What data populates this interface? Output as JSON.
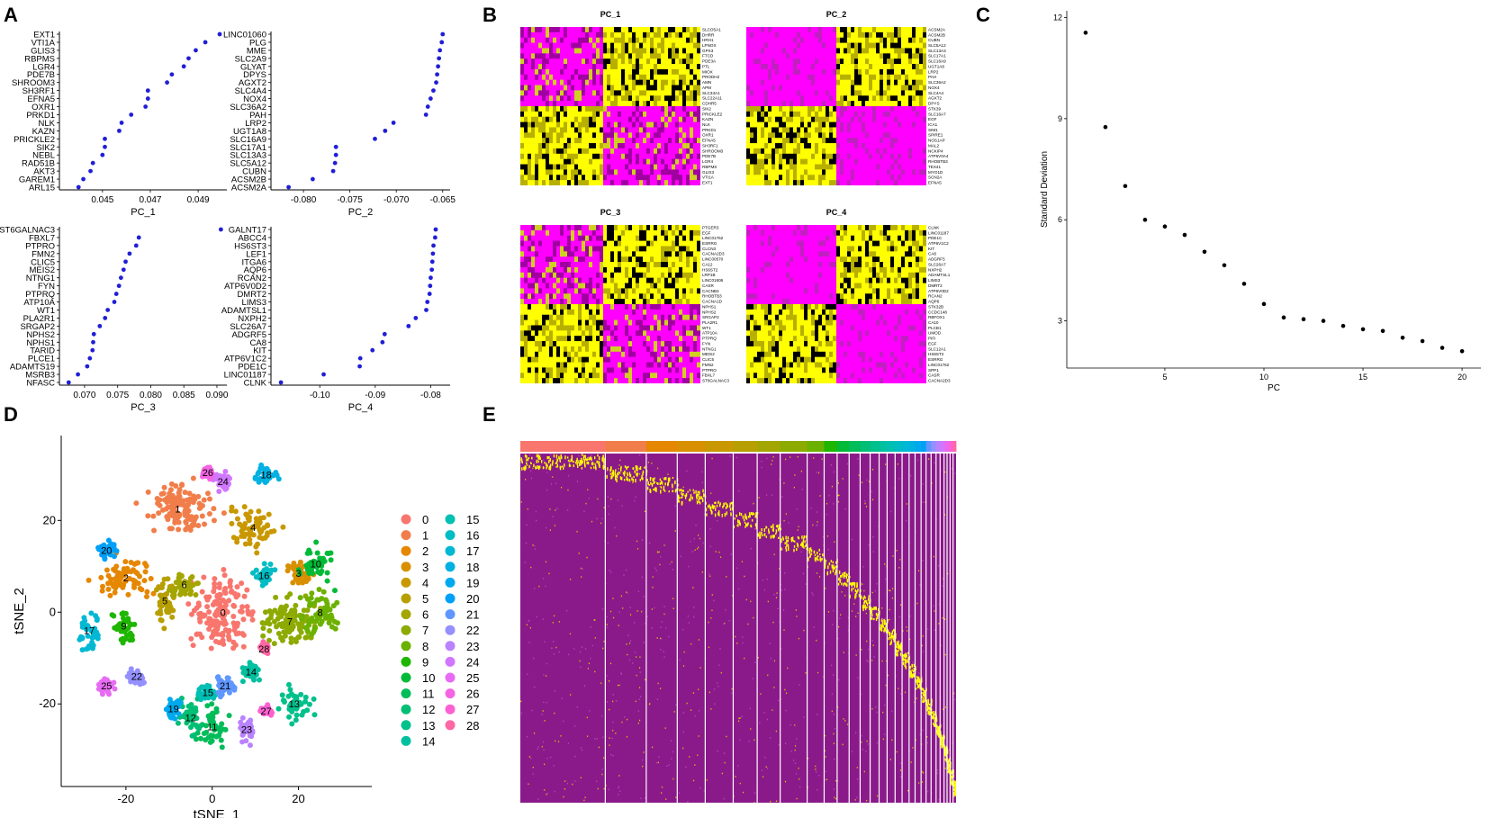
{
  "figure": {
    "panel_letters": [
      "A",
      "B",
      "C",
      "D",
      "E"
    ]
  },
  "chart_data": [
    {
      "id": "A1",
      "type": "scatter",
      "panel": "A",
      "xlabel": "PC_1",
      "xticks": [
        "0.045",
        "0.047",
        "0.049"
      ],
      "xtick_values": [
        0.045,
        0.047,
        0.049
      ],
      "xlim": [
        0.0432,
        0.0502
      ],
      "genes": [
        "EXT1",
        "VTI1A",
        "GLIS3",
        "RBPMS",
        "LGR4",
        "PDE7B",
        "SHROOM3",
        "SH3RF1",
        "EFNA5",
        "OXR1",
        "PRKD1",
        "NLK",
        "KAZN",
        "PRICKLE2",
        "SIK2",
        "NEBL",
        "RAD51B",
        "AKT3",
        "GAREM1",
        "ARL15"
      ],
      "values": [
        0.0499,
        0.0493,
        0.0489,
        0.0486,
        0.0484,
        0.0479,
        0.0477,
        0.0469,
        0.0469,
        0.0468,
        0.0462,
        0.0458,
        0.0457,
        0.0451,
        0.0451,
        0.045,
        0.0446,
        0.0445,
        0.0442,
        0.044
      ]
    },
    {
      "id": "A2",
      "type": "scatter",
      "panel": "A",
      "xlabel": "PC_2",
      "xticks": [
        "-0.080",
        "-0.075",
        "-0.070",
        "-0.065"
      ],
      "xtick_values": [
        -0.08,
        -0.075,
        -0.07,
        -0.065
      ],
      "xlim": [
        -0.0835,
        -0.0642
      ],
      "genes": [
        "LINC01060",
        "PLG",
        "MME",
        "SLC2A9",
        "GLYAT",
        "DPYS",
        "AGXT2",
        "SLC4A4",
        "NOX4",
        "SLC36A2",
        "PAH",
        "LRP2",
        "UGT1A8",
        "SLC16A9",
        "SLC17A1",
        "SLC13A3",
        "SLC5A12",
        "CUBN",
        "ACSM2B",
        "ACSM2A"
      ],
      "values": [
        -0.065,
        -0.0651,
        -0.0653,
        -0.0654,
        -0.0655,
        -0.0656,
        -0.0657,
        -0.066,
        -0.0663,
        -0.0666,
        -0.0668,
        -0.0703,
        -0.0712,
        -0.0723,
        -0.0765,
        -0.0765,
        -0.0766,
        -0.0768,
        -0.079,
        -0.0816
      ]
    },
    {
      "id": "A3",
      "type": "scatter",
      "panel": "A",
      "xlabel": "PC_3",
      "xticks": [
        "0.070",
        "0.075",
        "0.080",
        "0.085",
        "0.090"
      ],
      "xtick_values": [
        0.07,
        0.075,
        0.08,
        0.085,
        0.09
      ],
      "xlim": [
        0.0662,
        0.0915
      ],
      "genes": [
        "ST6GALNAC3",
        "FBXL7",
        "PTPRO",
        "FMN2",
        "CLIC5",
        "MEIS2",
        "NTNG1",
        "FYN",
        "PTPRQ",
        "ATP10A",
        "WT1",
        "PLA2R1",
        "SRGAP2",
        "NPHS2",
        "NPHS1",
        "TARID",
        "PLCE1",
        "ADAMTS19",
        "MSRB3",
        "NFASC"
      ],
      "values": [
        0.0906,
        0.0782,
        0.0778,
        0.0768,
        0.0762,
        0.0759,
        0.0755,
        0.0752,
        0.0748,
        0.0745,
        0.0735,
        0.0731,
        0.0723,
        0.0714,
        0.0713,
        0.0712,
        0.0708,
        0.0704,
        0.069,
        0.0676
      ]
    },
    {
      "id": "A4",
      "type": "scatter",
      "panel": "A",
      "xlabel": "PC_4",
      "xticks": [
        "-0.10",
        "-0.09",
        "-0.08"
      ],
      "xtick_values": [
        -0.1,
        -0.09,
        -0.08
      ],
      "xlim": [
        -0.1088,
        -0.0765
      ],
      "genes": [
        "GALNT17",
        "ABCC4",
        "HS6ST3",
        "LEF1",
        "ITGA6",
        "AQP6",
        "RCAN2",
        "ATP6V0D2",
        "DMRT2",
        "LIMS3",
        "ADAMTSL1",
        "NXPH2",
        "SLC26A7",
        "ADGRF5",
        "CA8",
        "KIT",
        "ATP6V1C2",
        "PDE1C",
        "LINC01187",
        "CLNK"
      ],
      "values": [
        -0.0791,
        -0.0792,
        -0.0795,
        -0.0796,
        -0.0797,
        -0.0798,
        -0.08,
        -0.0801,
        -0.0802,
        -0.0806,
        -0.0808,
        -0.0827,
        -0.084,
        -0.0883,
        -0.0887,
        -0.0905,
        -0.0927,
        -0.0928,
        -0.0993,
        -0.107
      ]
    },
    {
      "id": "B",
      "type": "heatmap",
      "panel": "B",
      "titles": [
        "PC_1",
        "PC_2",
        "PC_3",
        "PC_4"
      ],
      "colors": {
        "low": "#ff00ff",
        "high": "#ffff00",
        "mid": "#000000"
      },
      "genes": [
        [
          "SLCO5A1",
          "DHRR",
          "HRH1",
          "LPNOX",
          "GPX3",
          "FTCD",
          "PDE3A",
          "PTL",
          "MIOX",
          "PRODH2",
          "AMN",
          "APM",
          "SLC34A1",
          "SLC22A11",
          "CDHR5",
          "SIK2",
          "PRICKLE2",
          "KAZN",
          "NLK",
          "PRKD1",
          "OXR1",
          "EFNA5",
          "SH3RF1",
          "SHROOM3",
          "PDE7B",
          "LGR4",
          "RBPMS",
          "GLIS3",
          "VTI1A",
          "EXT1"
        ],
        [
          "ACSM2A",
          "ACSM2B",
          "CUBN",
          "SLC5A12",
          "SLC13A3",
          "SLC17A1",
          "SLC16A9",
          "UGT1A8",
          "LRP2",
          "PAH",
          "SLC36A2",
          "NOX4",
          "SLC4A4",
          "AGXT2",
          "DPYS",
          "STK39",
          "SLC16A7",
          "EGF",
          "ICA1",
          "SIM1",
          "SPIRE1",
          "NOS1AP",
          "MAL2",
          "NCKIP4",
          "ATP6V0A4",
          "RHOBTB3",
          "TEX41",
          "MYO1D",
          "SCN2A",
          "EFNA5"
        ],
        [
          "PTGER3",
          "EGF",
          "LINC01762",
          "ESRRG",
          "CLCN3",
          "CACNA2D3",
          "LINC00570",
          "CA12",
          "HS6ST2",
          "LRP1B",
          "LINC01606",
          "CASR",
          "CACNB4",
          "RHOBTB3",
          "CACNA1D",
          "NPHS1",
          "NPHS2",
          "SRGAP2",
          "PLA2R1",
          "WT1",
          "ATP10A",
          "PTPRQ",
          "FYN",
          "NTNG1",
          "MEIS2",
          "CLIC5",
          "FMN2",
          "PTPRO",
          "FBXL7",
          "ST6GALNAC3"
        ],
        [
          "CLNK",
          "LINC01187",
          "PDE1C",
          "ATP6V1C2",
          "KIT",
          "CA8",
          "ADGRF5",
          "SLC26A7",
          "NXPH2",
          "ADAMTSL1",
          "LIMS3",
          "DMRT2",
          "ATP6V0D2",
          "RCAN2",
          "AQP6",
          "STK32B",
          "CCDC148",
          "RBFOX1",
          "CA10",
          "PLCB1",
          "UMOD",
          "PIFI",
          "EGF",
          "SLC12A1",
          "HS6ST2",
          "ESRRG",
          "LINC01762",
          "SPP1",
          "CASR",
          "CACNA2D3"
        ]
      ]
    },
    {
      "id": "C",
      "type": "scatter",
      "panel": "C",
      "xlabel": "PC",
      "ylabel": "Standard Deviation",
      "xticks": [
        "5",
        "10",
        "15",
        "20"
      ],
      "xtick_values": [
        5,
        10,
        15,
        20
      ],
      "yticks": [
        "3",
        "6",
        "9",
        "12"
      ],
      "ytick_values": [
        3,
        6,
        9,
        12
      ],
      "xlim": [
        0.05,
        20.95
      ],
      "ylim": [
        1.6,
        12.2
      ],
      "x": [
        1,
        2,
        3,
        4,
        5,
        6,
        7,
        8,
        9,
        10,
        11,
        12,
        13,
        14,
        15,
        16,
        17,
        18,
        19,
        20
      ],
      "values": [
        11.55,
        8.75,
        7.0,
        6.0,
        5.8,
        5.55,
        5.05,
        4.65,
        4.1,
        3.5,
        3.1,
        3.05,
        3.0,
        2.85,
        2.75,
        2.7,
        2.5,
        2.4,
        2.2,
        2.1
      ]
    },
    {
      "id": "D",
      "type": "scatter",
      "panel": "D",
      "xlabel": "tSNE_1",
      "ylabel": "tSNE_2",
      "xticks": [
        "-20",
        "0",
        "20"
      ],
      "xtick_values": [
        -20,
        0,
        20
      ],
      "yticks": [
        "-20",
        "0",
        "20"
      ],
      "ytick_values": [
        -20,
        0,
        20
      ],
      "xlim": [
        -35,
        37
      ],
      "ylim": [
        -38,
        38.5
      ],
      "legend_title": "",
      "clusters": [
        {
          "id": "0",
          "color": "#F8766D",
          "center": [
            2.5,
            0.0
          ],
          "size": [
            10.5,
            12
          ]
        },
        {
          "id": "1",
          "color": "#F17E4A",
          "center": [
            -8,
            22.5
          ],
          "size": [
            12,
            8.5
          ]
        },
        {
          "id": "2",
          "color": "#E58700",
          "center": [
            -20,
            7.5
          ],
          "size": [
            10,
            6
          ]
        },
        {
          "id": "3",
          "color": "#D89000",
          "center": [
            20,
            8.5
          ],
          "size": [
            5,
            5
          ]
        },
        {
          "id": "4",
          "color": "#C99800",
          "center": [
            9.5,
            18.5
          ],
          "size": [
            8,
            7
          ]
        },
        {
          "id": "5",
          "color": "#B79F00",
          "center": [
            -11,
            2.5
          ],
          "size": [
            4,
            9
          ]
        },
        {
          "id": "6",
          "color": "#A3A500",
          "center": [
            -6.5,
            6
          ],
          "size": [
            5,
            4
          ]
        },
        {
          "id": "7",
          "color": "#8DAA00",
          "center": [
            18,
            -2
          ],
          "size": [
            11,
            8
          ]
        },
        {
          "id": "8",
          "color": "#6BB100",
          "center": [
            25,
            0
          ],
          "size": [
            7,
            7
          ]
        },
        {
          "id": "9",
          "color": "#1EB600",
          "center": [
            -20.5,
            -3
          ],
          "size": [
            4,
            6
          ]
        },
        {
          "id": "10",
          "color": "#00BA38",
          "center": [
            24,
            10.5
          ],
          "size": [
            6,
            6
          ]
        },
        {
          "id": "11",
          "color": "#00BC59",
          "center": [
            0,
            -25
          ],
          "size": [
            5,
            7
          ]
        },
        {
          "id": "12",
          "color": "#00BE74",
          "center": [
            -5,
            -23
          ],
          "size": [
            4,
            6
          ]
        },
        {
          "id": "13",
          "color": "#00C08B",
          "center": [
            19,
            -20
          ],
          "size": [
            5,
            6
          ]
        },
        {
          "id": "14",
          "color": "#00C0A0",
          "center": [
            9,
            -13
          ],
          "size": [
            3,
            3
          ]
        },
        {
          "id": "15",
          "color": "#00BFB3",
          "center": [
            -1,
            -17.5
          ],
          "size": [
            3,
            2.5
          ]
        },
        {
          "id": "16",
          "color": "#00BCC4",
          "center": [
            12,
            8
          ],
          "size": [
            3,
            3
          ]
        },
        {
          "id": "17",
          "color": "#00B8D4",
          "center": [
            -28.5,
            -4
          ],
          "size": [
            4,
            7
          ]
        },
        {
          "id": "18",
          "color": "#00B1E2",
          "center": [
            12.5,
            30
          ],
          "size": [
            4,
            3.5
          ]
        },
        {
          "id": "19",
          "color": "#00A9EE",
          "center": [
            -9,
            -21
          ],
          "size": [
            3,
            4
          ]
        },
        {
          "id": "20",
          "color": "#00A0F8",
          "center": [
            -24.5,
            13.5
          ],
          "size": [
            3,
            3
          ]
        },
        {
          "id": "21",
          "color": "#5F96FF",
          "center": [
            3,
            -16
          ],
          "size": [
            3,
            3
          ]
        },
        {
          "id": "22",
          "color": "#9590FF",
          "center": [
            -17.5,
            -14
          ],
          "size": [
            3.5,
            3
          ]
        },
        {
          "id": "23",
          "color": "#B983FF",
          "center": [
            8,
            -25.5
          ],
          "size": [
            3,
            4
          ]
        },
        {
          "id": "24",
          "color": "#D177FF",
          "center": [
            2.5,
            28.5
          ],
          "size": [
            3,
            3
          ]
        },
        {
          "id": "25",
          "color": "#E76BF3",
          "center": [
            -24.5,
            -16
          ],
          "size": [
            2.5,
            2.5
          ]
        },
        {
          "id": "26",
          "color": "#F564E3",
          "center": [
            -1,
            30.5
          ],
          "size": [
            1.8,
            2
          ]
        },
        {
          "id": "27",
          "color": "#FD61D1",
          "center": [
            12.5,
            -21.5
          ],
          "size": [
            1.8,
            2
          ]
        },
        {
          "id": "28",
          "color": "#FF67A4",
          "center": [
            12,
            -8
          ],
          "size": [
            1.8,
            1.8
          ]
        }
      ]
    },
    {
      "id": "E",
      "type": "heatmap",
      "panel": "E",
      "cluster_widths": [
        85,
        41,
        31,
        28,
        28,
        24,
        23,
        27,
        17,
        13,
        12,
        11,
        10,
        9,
        8,
        8,
        7,
        7,
        6,
        6,
        5,
        5,
        5,
        4,
        4,
        3,
        3,
        3,
        3
      ],
      "colors": {
        "low": "#8a1a8a",
        "high": "#ffff00"
      },
      "cluster_colors": [
        "#F8766D",
        "#F17E4A",
        "#E58700",
        "#D89000",
        "#C99800",
        "#B79F00",
        "#A3A500",
        "#8DAA00",
        "#6BB100",
        "#1EB600",
        "#00BA38",
        "#00BC59",
        "#00BE74",
        "#00C08B",
        "#00C0A0",
        "#00BFB3",
        "#00BCC4",
        "#00B8D4",
        "#00B1E2",
        "#00A9EE",
        "#00A0F8",
        "#5F96FF",
        "#9590FF",
        "#B983FF",
        "#D177FF",
        "#E76BF3",
        "#F564E3",
        "#FD61D1",
        "#FF67A4"
      ]
    }
  ]
}
